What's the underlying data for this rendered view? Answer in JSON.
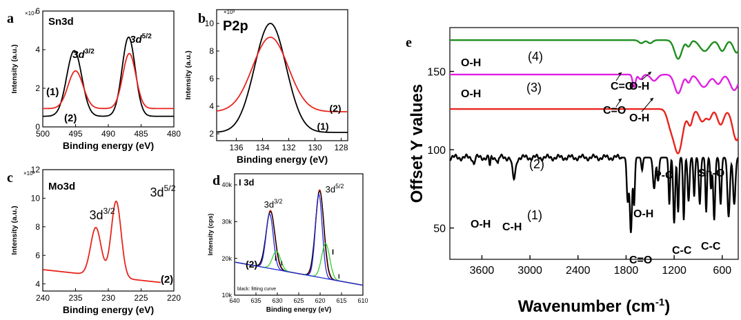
{
  "chart_data": [
    {
      "id": "a",
      "panel_label": "a",
      "type": "line",
      "title": "Sn3d",
      "multiplier": "×10⁴",
      "xlabel": "Binding energy (eV)",
      "ylabel": "Intensity (a.u.)",
      "xlim": [
        500,
        480
      ],
      "ylim": [
        0,
        6
      ],
      "xticks": [
        500,
        495,
        490,
        485,
        480
      ],
      "yticks": [
        0,
        2,
        4,
        6
      ],
      "series": [
        {
          "name": "(1)",
          "color": "#000000",
          "baseline": 0.55,
          "slope": 0,
          "peaks": [
            {
              "x": 495.2,
              "h": 3.4,
              "w": 1.15
            },
            {
              "x": 486.9,
              "h": 4.1,
              "w": 1.0
            }
          ]
        },
        {
          "name": "(2)",
          "color": "#e8231c",
          "baseline": 0.95,
          "slope": 0,
          "peaks": [
            {
              "x": 495.0,
              "h": 1.95,
              "w": 1.15
            },
            {
              "x": 486.8,
              "h": 2.85,
              "w": 1.0
            }
          ]
        }
      ],
      "annotations": [
        {
          "text": "3d",
          "sup": "3/2"
        },
        {
          "text": "3d",
          "sup": "5/2"
        }
      ]
    },
    {
      "id": "b",
      "panel_label": "b",
      "type": "line",
      "title": "P2p",
      "multiplier": "×10³",
      "xlabel": "Binding energy (eV)",
      "ylabel": "Intensity (a.u.)",
      "xlim": [
        137.5,
        127.5
      ],
      "ylim": [
        1.5,
        11
      ],
      "xticks": [
        136,
        134,
        132,
        130,
        128
      ],
      "yticks": [
        2,
        4,
        6,
        8,
        10
      ],
      "series": [
        {
          "name": "(1)",
          "color": "#000000",
          "baseline": 2.1,
          "slope": 0,
          "peaks": [
            {
              "x": 133.4,
              "h": 7.9,
              "w": 1.2
            }
          ]
        },
        {
          "name": "(2)",
          "color": "#e8231c",
          "baseline": 3.6,
          "slope": 0,
          "peaks": [
            {
              "x": 133.4,
              "h": 5.4,
              "w": 1.35
            }
          ]
        }
      ]
    },
    {
      "id": "c",
      "panel_label": "c",
      "type": "line",
      "title": "Mo3d",
      "multiplier": "×10³",
      "xlabel": "Binding energy (eV)",
      "ylabel": "Intensity (a.u.)",
      "xlim": [
        240,
        220
      ],
      "ylim": [
        3.5,
        12
      ],
      "xticks": [
        240,
        235,
        230,
        225,
        220
      ],
      "yticks": [
        4,
        6,
        8,
        10,
        12
      ],
      "series": [
        {
          "name": "(2)",
          "color": "#e8231c",
          "baseline": 5.0,
          "slope": -0.05,
          "x_range": [
            240,
            222
          ],
          "peaks": [
            {
              "x": 231.9,
              "h": 3.35,
              "w": 0.8
            },
            {
              "x": 228.8,
              "h": 5.35,
              "w": 0.75
            }
          ]
        }
      ],
      "annotations": [
        {
          "text": "3d",
          "sup": "3/2"
        },
        {
          "text": "3d",
          "sup": "5/2"
        }
      ]
    },
    {
      "id": "d",
      "panel_label": "d",
      "type": "line",
      "title": "I 3d",
      "xlabel": "Binding energy (eV)",
      "ylabel": "Intensity (cps)",
      "xlim": [
        640,
        610
      ],
      "ylim": [
        10000,
        43000
      ],
      "xticks": [
        640,
        635,
        630,
        625,
        620,
        615,
        610
      ],
      "yticks": [
        10000,
        20000,
        30000,
        40000
      ],
      "ytick_labels": [
        "10k",
        "20k",
        "30k",
        "40k"
      ],
      "series": [
        {
          "name": "(2)",
          "color": "#e8231c",
          "baseline": 19000,
          "slope": -210,
          "peaks": [
            {
              "x": 631.6,
              "h": 15800,
              "w": 1.0
            },
            {
              "x": 620.1,
              "h": 23800,
              "w": 0.95
            }
          ]
        },
        {
          "name": "fitting curve",
          "color": "#000000",
          "baseline": 19000,
          "slope": -210,
          "peaks": [
            {
              "x": 631.6,
              "h": 15500,
              "w": 1.05
            },
            {
              "x": 620.1,
              "h": 23500,
              "w": 1.0
            }
          ]
        },
        {
          "name": "I1",
          "color": "#1f2bd6",
          "baseline": 19000,
          "slope": -210,
          "peaks": [
            {
              "x": 631.8,
              "h": 14800,
              "w": 0.85
            },
            {
              "x": 620.3,
              "h": 22600,
              "w": 0.8
            }
          ]
        },
        {
          "name": "I2",
          "color": "#2fd02f",
          "baseline": 19000,
          "slope": -210,
          "peaks": [
            {
              "x": 630.2,
              "h": 5000,
              "w": 0.95
            },
            {
              "x": 618.7,
              "h": 9500,
              "w": 0.95
            }
          ]
        },
        {
          "name": "background",
          "color": "#1f2bd6",
          "baseline": 19000,
          "slope": -210,
          "peaks": []
        }
      ],
      "annotations": [
        {
          "text": "3d",
          "sup": "3/2"
        },
        {
          "text": "3d",
          "sup": "5/2"
        },
        {
          "text": "black: fitting curve"
        }
      ]
    },
    {
      "id": "e",
      "panel_label": "e",
      "type": "line",
      "xlabel": "Wavenumber (cm⁻¹)",
      "ylabel": "Offset Y values",
      "xlim": [
        4000,
        400
      ],
      "ylim": [
        30,
        178
      ],
      "xticks": [
        3600,
        3000,
        2400,
        1800,
        1200,
        600
      ],
      "yticks": [
        50,
        100,
        150
      ],
      "series": [
        {
          "name": "(4)",
          "color": "#1e8e1e",
          "baseline": 170,
          "dips": [
            [
              1610,
              2,
              30
            ],
            [
              1500,
              2,
              30
            ],
            [
              1150,
              12,
              45
            ],
            [
              1020,
              4,
              25
            ],
            [
              820,
              7,
              60
            ],
            [
              600,
              7,
              40
            ],
            [
              420,
              8,
              40
            ]
          ]
        },
        {
          "name": "(3)",
          "color": "#e11ee1",
          "baseline": 148,
          "dips": [
            [
              1700,
              8,
              18
            ],
            [
              1620,
              3,
              25
            ],
            [
              1450,
              4,
              40
            ],
            [
              1150,
              12,
              45
            ],
            [
              1020,
              5,
              25
            ],
            [
              830,
              8,
              60
            ],
            [
              650,
              6,
              40
            ],
            [
              450,
              10,
              50
            ]
          ]
        },
        {
          "name": "(2)",
          "color": "#e8231c",
          "baseline": 126,
          "dips": [
            [
              1250,
              8,
              40
            ],
            [
              1150,
              28,
              55
            ],
            [
              1000,
              10,
              30
            ],
            [
              850,
              8,
              40
            ],
            [
              760,
              6,
              30
            ],
            [
              620,
              10,
              40
            ],
            [
              420,
              20,
              50
            ]
          ]
        },
        {
          "name": "(1)",
          "color": "#000000",
          "baseline": 95,
          "dips": [
            [
              3700,
              4,
              10
            ],
            [
              3500,
              6,
              8
            ],
            [
              3400,
              4,
              8
            ],
            [
              3200,
              14,
              20
            ],
            [
              1780,
              28,
              12
            ],
            [
              1740,
              48,
              14
            ],
            [
              1700,
              30,
              10
            ],
            [
              1600,
              8,
              10
            ],
            [
              1450,
              20,
              15
            ],
            [
              1400,
              15,
              12
            ],
            [
              1260,
              30,
              10
            ],
            [
              1200,
              42,
              12
            ],
            [
              1150,
              35,
              10
            ],
            [
              1080,
              40,
              10
            ],
            [
              1020,
              28,
              12
            ],
            [
              950,
              25,
              10
            ],
            [
              880,
              30,
              12
            ],
            [
              800,
              35,
              10
            ],
            [
              740,
              20,
              10
            ],
            [
              700,
              40,
              12
            ],
            [
              620,
              30,
              12
            ],
            [
              520,
              38,
              15
            ],
            [
              450,
              30,
              15
            ]
          ]
        }
      ]
    }
  ],
  "labels": {
    "a_3d32": "3d",
    "a_3d32_sup": "3/2",
    "a_3d52": "3d",
    "a_3d52_sup": "5/2",
    "c_3d32": "3d",
    "c_3d32_sup": "3/2",
    "c_3d52": "3d",
    "c_3d52_sup": "5/2",
    "d_3d32": "3d",
    "d_3d32_sup": "3/2",
    "d_3d52": "3d",
    "d_3d52_sup": "5/2",
    "d_I1": "I",
    "d_I2": "I",
    "d_note": "black: fitting curve",
    "e_OH": "O-H",
    "e_CO": "C=O",
    "e_CH": "C-H",
    "e_PO": "P-O",
    "e_SnO": "Sn-O",
    "e_CC": "C-C",
    "e_xlabel_main": "Wavenumber (cm",
    "e_xlabel_sup": "-1",
    "e_xlabel_end": ")"
  }
}
